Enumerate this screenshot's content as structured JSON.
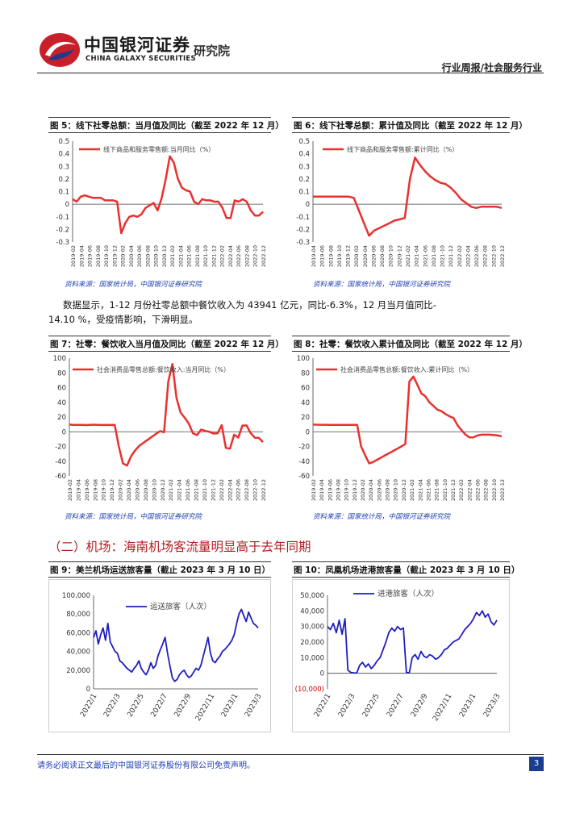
{
  "header": {
    "brand_cn": "中国银河证券",
    "brand_yjy": "研究院",
    "brand_en": "CHINA GALAXY SECURITIES",
    "right_label": "行业周报/社会服务行业"
  },
  "figures": {
    "fig5": {
      "title": "图 5：线下社零总额：当月值及同比（截至 2022 年 12 月）",
      "source": "资料来源：国家统计局，中国银河证券研究院"
    },
    "fig6": {
      "title": "图 6：线下社零总额：累计值及同比（截至 2022 年 12 月）",
      "source": "资料来源：国家统计局，中国银河证券研究院"
    },
    "fig7": {
      "title": "图 7：社零：餐饮收入当月值及同比（截至 2022 年 12 月）",
      "source": "资料来源：国家统计局，中国银河证券研究院"
    },
    "fig8": {
      "title": "图 8：社零：餐饮收入累计值及同比（截至 2022 年 12 月）",
      "source": "资料来源：国家统计局，中国银河证券研究院"
    },
    "fig9": {
      "title": "图 9：美兰机场运送旅客量（截止 2023 年 3 月 10 日）"
    },
    "fig10": {
      "title": "图 10：凤凰机场进港旅客量（截止 2023 年 3 月 10 日）"
    }
  },
  "body": {
    "para_line1": "数据显示，1-12 月份社零总额中餐饮收入为 43941 亿元，同比-6.3%，12 月当月值同比-",
    "para_line2": "14.10 %，受疫情影响，下滑明显。",
    "section_title": "（二）机场：海南机场客流量明显高于去年同期"
  },
  "footer": {
    "disclaimer": "请务必阅读正文最后的中国银河证券股份有限公司免责声明。",
    "page": "3"
  },
  "colors": {
    "line_red": "#e8312f",
    "line_blue": "#1f1fbf",
    "accent_red": "#b01e23"
  },
  "chart_data": [
    {
      "id": "fig5",
      "type": "line",
      "legend": "线下商品和服务零售额:当月同比（%）",
      "ylim": [
        -0.3,
        0.5
      ],
      "yticks": [
        "0.5",
        "0.4",
        "0.3",
        "0.2",
        "0.1",
        "0",
        "-0.1",
        "-0.2",
        "-0.3"
      ],
      "xticks": [
        "2019-02",
        "2019-04",
        "2019-06",
        "2019-08",
        "2019-10",
        "2019-12",
        "2020-02",
        "2020-04",
        "2020-06",
        "2020-08",
        "2020-10",
        "2020-12",
        "2021-02",
        "2021-04",
        "2021-06",
        "2021-08",
        "2021-10",
        "2021-12",
        "2022-02",
        "2022-04",
        "2022-06",
        "2022-08",
        "2022-10",
        "2022-12"
      ],
      "values": [
        0.04,
        0.02,
        0.06,
        0.07,
        0.06,
        0.05,
        0.05,
        0.05,
        0.03,
        0.03,
        0.03,
        0.02,
        -0.23,
        -0.15,
        -0.1,
        -0.09,
        -0.1,
        -0.08,
        -0.03,
        -0.01,
        0.01,
        -0.05,
        0.05,
        0.2,
        0.38,
        0.33,
        0.2,
        0.13,
        0.11,
        0.1,
        0.02,
        0.0,
        0.04,
        0.03,
        0.03,
        0.02,
        0.02,
        -0.03,
        -0.11,
        -0.11,
        0.03,
        0.02,
        0.04,
        0.02,
        -0.05,
        -0.09,
        -0.09,
        -0.06
      ]
    },
    {
      "id": "fig6",
      "type": "line",
      "legend": "线下商品和服务零售额:累计同比（%）",
      "ylim": [
        -0.3,
        0.5
      ],
      "yticks": [
        "0.5",
        "0.4",
        "0.3",
        "0.2",
        "0.1",
        "0",
        "-0.1",
        "-0.2",
        "-0.3"
      ],
      "xticks": [
        "2019-04",
        "2019-06",
        "2019-08",
        "2019-10",
        "2019-12",
        "2020-02",
        "2020-04",
        "2020-06",
        "2020-08",
        "2020-10",
        "2020-12",
        "2021-02",
        "2021-04",
        "2021-06",
        "2021-08",
        "2021-10",
        "2021-12",
        "2022-02",
        "2022-04",
        "2022-06",
        "2022-08",
        "2022-10",
        "2022-12"
      ],
      "values": [
        0.06,
        0.06,
        0.06,
        0.06,
        0.06,
        0.06,
        0.06,
        0.06,
        0.05,
        -0.05,
        -0.15,
        -0.25,
        -0.21,
        -0.19,
        -0.17,
        -0.15,
        -0.13,
        -0.12,
        -0.11,
        0.2,
        0.37,
        0.31,
        0.26,
        0.22,
        0.19,
        0.17,
        0.16,
        0.13,
        0.09,
        0.04,
        0.01,
        -0.02,
        -0.03,
        -0.02,
        -0.02,
        -0.02,
        -0.02,
        -0.03
      ]
    },
    {
      "id": "fig7",
      "type": "line",
      "legend": "社会消费品零售总额:餐饮收入:当月同比（%）",
      "ylim": [
        -60,
        100
      ],
      "yticks": [
        "100",
        "80",
        "60",
        "40",
        "20",
        "0",
        "-20",
        "-40",
        "-60"
      ],
      "xticks": [
        "2019-02",
        "2019-04",
        "2019-06",
        "2019-08",
        "2019-10",
        "2019-12",
        "2020-02",
        "2020-04",
        "2020-06",
        "2020-08",
        "2020-10",
        "2020-12",
        "2021-02",
        "2021-04",
        "2021-06",
        "2021-08",
        "2021-10",
        "2021-12",
        "2022-02",
        "2022-04",
        "2022-06",
        "2022-08",
        "2022-10",
        "2022-12"
      ],
      "values": [
        9.7,
        9.4,
        9.3,
        9.4,
        9.0,
        9.4,
        9.6,
        9.4,
        9.1,
        9.4,
        9.2,
        9.4,
        -20,
        -43,
        -46,
        -33,
        -25,
        -19,
        -15,
        -11,
        -7,
        -3,
        0.8,
        -0.6,
        68,
        92,
        46,
        26,
        19,
        11,
        -2,
        -4.5,
        3,
        1.2,
        0,
        -2.5,
        -2,
        8.9,
        -22,
        -23,
        -4,
        -8,
        8.4,
        8.6,
        -1.7,
        -8.1,
        -8.4,
        -14.1
      ]
    },
    {
      "id": "fig8",
      "type": "line",
      "legend": "社会消费品零售总额:餐饮收入:累计同比（%）",
      "ylim": [
        -60,
        100
      ],
      "yticks": [
        "100",
        "80",
        "60",
        "40",
        "20",
        "0",
        "-20",
        "-40",
        "-60"
      ],
      "xticks": [
        "2019-02",
        "2019-04",
        "2019-06",
        "2019-08",
        "2019-10",
        "2019-12",
        "2020-02",
        "2020-04",
        "2020-06",
        "2020-08",
        "2020-10",
        "2020-12",
        "2021-02",
        "2021-04",
        "2021-06",
        "2021-08",
        "2021-10",
        "2021-12",
        "2022-02",
        "2022-04",
        "2022-06",
        "2022-08",
        "2022-10",
        "2022-12"
      ],
      "values": [
        9.7,
        9.6,
        9.5,
        9.5,
        9.4,
        9.4,
        9.4,
        9.4,
        9.4,
        9.4,
        9.4,
        9.4,
        -20,
        -32,
        -43,
        -41,
        -38,
        -35,
        -32,
        -29,
        -26,
        -23,
        -20,
        -16.6,
        68,
        75,
        64,
        52,
        48,
        40,
        35,
        30,
        28,
        24,
        21,
        18.6,
        8.9,
        2,
        -4,
        -7.7,
        -7.5,
        -5,
        -4,
        -4,
        -4,
        -4.5,
        -5,
        -6.3
      ]
    },
    {
      "id": "fig9",
      "type": "line",
      "legend": "运送旅客（人次）",
      "ylim": [
        0,
        100000
      ],
      "yticks": [
        "100,000",
        "80,000",
        "60,000",
        "40,000",
        "20,000",
        "0"
      ],
      "xticks": [
        "2022/1",
        "2022/3",
        "2022/5",
        "2022/7",
        "2022/9",
        "2022/11",
        "2023/1",
        "2023/3"
      ],
      "values": [
        55000,
        62000,
        48000,
        58000,
        65000,
        52000,
        70000,
        50000,
        45000,
        40000,
        38000,
        30000,
        28000,
        25000,
        22000,
        20000,
        18000,
        22000,
        25000,
        30000,
        22000,
        18000,
        15000,
        20000,
        28000,
        22000,
        25000,
        35000,
        42000,
        48000,
        55000,
        38000,
        25000,
        12000,
        8000,
        10000,
        15000,
        18000,
        20000,
        15000,
        12000,
        14000,
        18000,
        22000,
        20000,
        25000,
        35000,
        45000,
        55000,
        38000,
        30000,
        28000,
        32000,
        35000,
        40000,
        42000,
        45000,
        48000,
        52000,
        58000,
        70000,
        80000,
        85000,
        78000,
        72000,
        82000,
        76000,
        70000,
        68000,
        65000
      ]
    },
    {
      "id": "fig10",
      "type": "line",
      "legend": "进港旅客（人次）",
      "ylim": [
        -10000,
        50000
      ],
      "yticks": [
        "50,000",
        "40,000",
        "30,000",
        "20,000",
        "10,000",
        "0",
        "(10,000)"
      ],
      "xticks": [
        "2022/1",
        "2022/3",
        "2022/5",
        "2022/7",
        "2022/9",
        "2022/11",
        "2023/1",
        "2023/3"
      ],
      "values": [
        30000,
        28000,
        32000,
        26000,
        34000,
        25000,
        35000,
        2000,
        500,
        300,
        200,
        5000,
        7000,
        4000,
        6000,
        3000,
        5000,
        8000,
        10000,
        15000,
        20000,
        26000,
        29000,
        27000,
        30000,
        28000,
        29000,
        500,
        300,
        10000,
        12000,
        9000,
        14000,
        11000,
        10000,
        12000,
        11000,
        9000,
        10000,
        12000,
        15000,
        16000,
        18000,
        20000,
        21000,
        22000,
        25000,
        28000,
        30000,
        32000,
        35000,
        39000,
        37000,
        40000,
        36000,
        38000,
        33000,
        31000,
        34000
      ]
    }
  ]
}
